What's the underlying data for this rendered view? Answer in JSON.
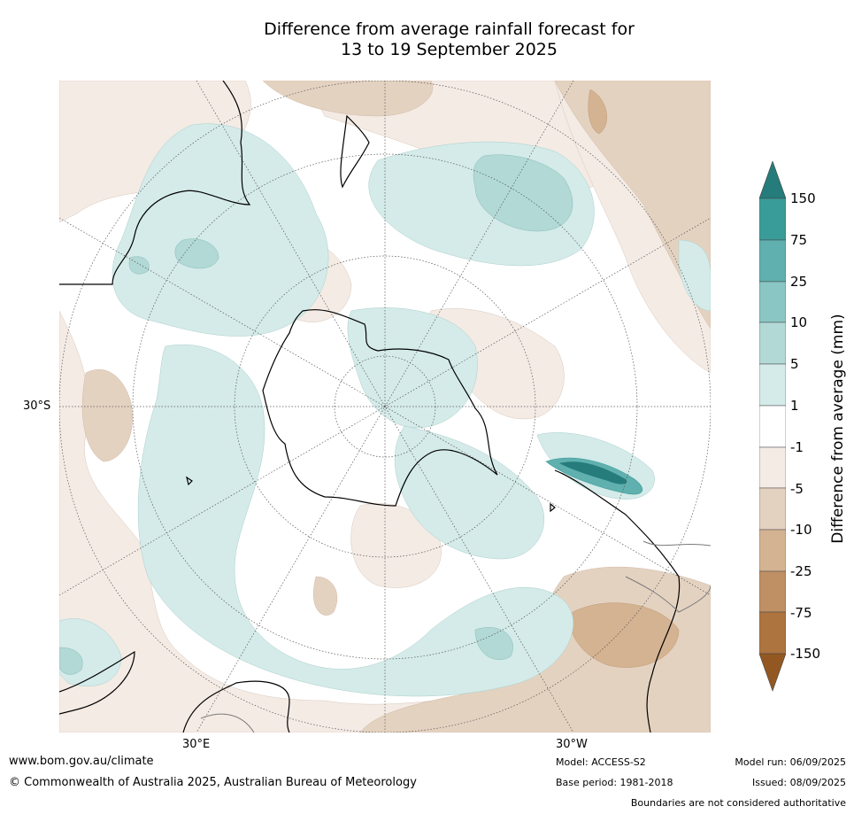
{
  "title": {
    "line1": "Difference from average rainfall forecast for",
    "line2": "13 to 19 September 2025"
  },
  "map_labels": {
    "lat": "30°S",
    "lon_east": "30°E",
    "lon_west": "30°W"
  },
  "colorbar": {
    "title": "Difference from average (mm)",
    "ticks": [
      "150",
      "75",
      "25",
      "10",
      "5",
      "1",
      "-1",
      "-5",
      "-10",
      "-25",
      "-75",
      "-150"
    ],
    "colors": [
      "#267c7b",
      "#3a9c99",
      "#5fb0ae",
      "#8ac6c3",
      "#b2d9d6",
      "#d4ebe9",
      "#ffffff",
      "#f4ebe5",
      "#e4d2c1",
      "#d4b392",
      "#be9064",
      "#ad7440",
      "#935822"
    ]
  },
  "footer": {
    "website": "www.bom.gov.au/climate",
    "copyright": "© Commonwealth of Australia 2025, Australian Bureau of Meteorology",
    "model": "Model: ACCESS-S2",
    "base_period": "Base period: 1981-2018",
    "model_run": "Model run: 06/09/2025",
    "issued": "Issued: 08/09/2025",
    "disclaimer": "Boundaries are not considered authoritative"
  }
}
